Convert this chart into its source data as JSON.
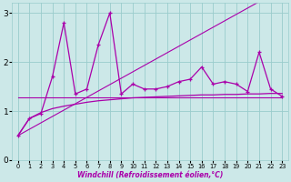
{
  "xlabel": "Windchill (Refroidissement éolien,°C)",
  "x_values": [
    0,
    1,
    2,
    3,
    4,
    5,
    6,
    7,
    8,
    9,
    10,
    11,
    12,
    13,
    14,
    15,
    16,
    17,
    18,
    19,
    20,
    21,
    22,
    23
  ],
  "jagged_y": [
    0.5,
    0.85,
    0.95,
    1.7,
    2.8,
    1.35,
    1.45,
    2.35,
    3.0,
    1.35,
    1.55,
    1.45,
    1.45,
    1.5,
    1.6,
    1.65,
    1.9,
    1.55,
    1.6,
    1.55,
    1.4,
    2.2,
    1.45,
    1.3
  ],
  "log_curve_y": [
    0.5,
    0.85,
    0.97,
    1.05,
    1.1,
    1.14,
    1.18,
    1.21,
    1.23,
    1.25,
    1.27,
    1.28,
    1.29,
    1.3,
    1.31,
    1.32,
    1.33,
    1.33,
    1.34,
    1.34,
    1.35,
    1.35,
    1.36,
    1.36
  ],
  "flat_line_y": [
    1.28,
    1.28,
    1.28,
    1.28,
    1.28,
    1.28,
    1.28,
    1.28,
    1.28,
    1.28,
    1.28,
    1.28,
    1.28,
    1.28,
    1.28,
    1.28,
    1.28,
    1.28,
    1.28,
    1.28,
    1.28,
    1.28,
    1.28,
    1.28
  ],
  "diag_line_y": [
    0.5,
    0.63,
    0.76,
    0.89,
    1.02,
    1.15,
    1.28,
    1.41,
    1.54,
    1.67,
    1.8,
    1.93,
    2.06,
    2.19,
    2.32,
    2.45,
    2.58,
    2.71,
    2.84,
    2.97,
    3.1,
    3.23,
    3.36,
    3.49
  ],
  "bg_color": "#cce8e8",
  "line_color": "#aa00aa",
  "grid_color": "#99cccc",
  "ylim": [
    0,
    3.2
  ],
  "xlim": [
    -0.5,
    23.5
  ],
  "yticks": [
    0,
    1,
    2,
    3
  ],
  "xticks": [
    0,
    1,
    2,
    3,
    4,
    5,
    6,
    7,
    8,
    9,
    10,
    11,
    12,
    13,
    14,
    15,
    16,
    17,
    18,
    19,
    20,
    21,
    22,
    23
  ]
}
